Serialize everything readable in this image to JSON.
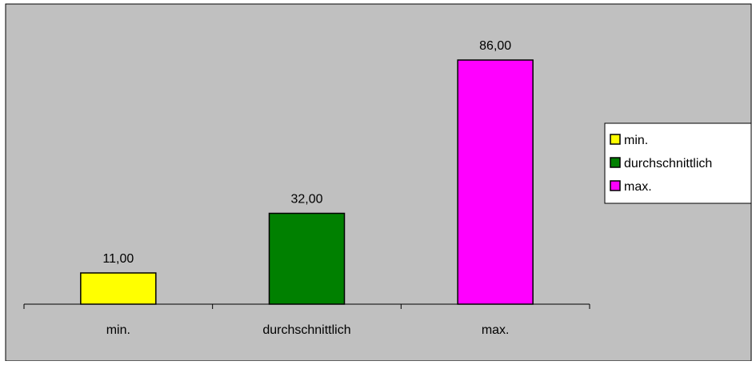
{
  "chart_data": {
    "type": "bar",
    "categories": [
      "min.",
      "durchschnittlich",
      "max."
    ],
    "values": [
      11,
      32,
      86
    ],
    "value_labels": [
      "11,00",
      "32,00",
      "86,00"
    ],
    "colors": [
      "#ffff00",
      "#008000",
      "#ff00ff"
    ],
    "ylim": [
      0,
      86
    ],
    "grid": false,
    "legend_position": "right",
    "legend": [
      {
        "label": "min.",
        "color": "#ffff00"
      },
      {
        "label": "durchschnittlich",
        "color": "#008000"
      },
      {
        "label": "max.",
        "color": "#ff00ff"
      }
    ],
    "background": "#c0c0c0"
  }
}
